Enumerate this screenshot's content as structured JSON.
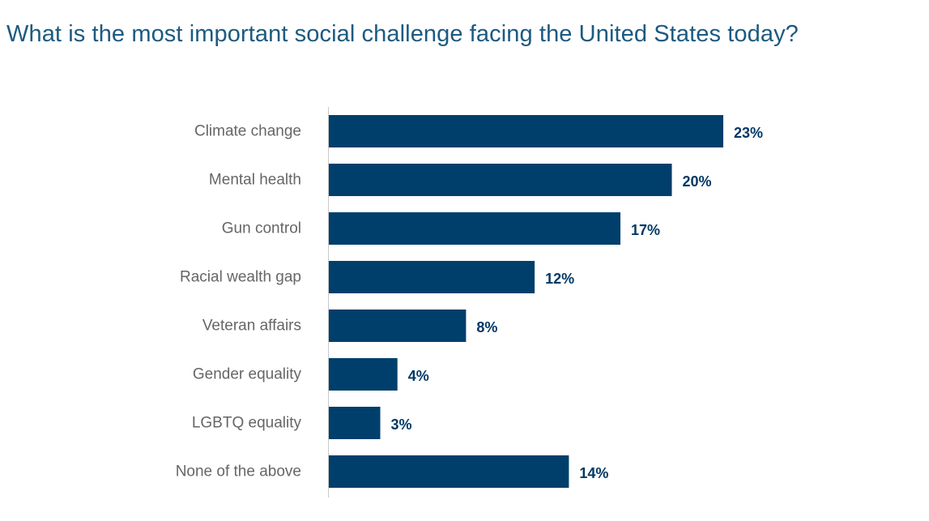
{
  "chart_data": {
    "type": "bar",
    "orientation": "horizontal",
    "title": "What is the most important social challenge facing the United States today?",
    "categories": [
      "Climate change",
      "Mental health",
      "Gun control",
      "Racial wealth gap",
      "Veteran affairs",
      "Gender equality",
      "LGBTQ equality",
      "None of the above"
    ],
    "values": [
      23,
      20,
      17,
      12,
      8,
      4,
      3,
      14
    ],
    "value_labels": [
      "23%",
      "20%",
      "17%",
      "12%",
      "8%",
      "4%",
      "3%",
      "14%"
    ],
    "unit": "%",
    "xlim": [
      0,
      23
    ],
    "xlabel": "",
    "ylabel": "",
    "grid": false,
    "legend": "none",
    "bar_color": "#003f6b"
  }
}
